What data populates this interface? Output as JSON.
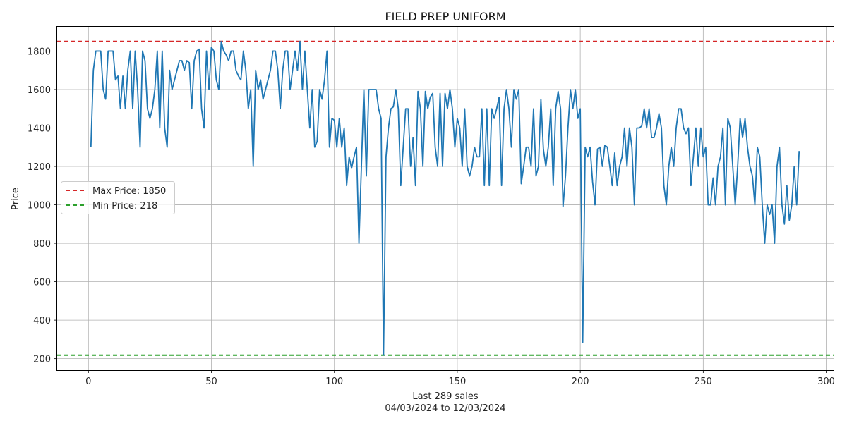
{
  "chart_data": {
    "type": "line",
    "title": "FIELD PREP UNIFORM",
    "xlabel": "Last 289 sales",
    "xlabel_sub": "04/03/2024 to 12/03/2024",
    "ylabel": "Price",
    "xlim": [
      -13,
      303
    ],
    "ylim": [
      140,
      1930
    ],
    "xticks": [
      0,
      50,
      100,
      150,
      200,
      250,
      300
    ],
    "yticks": [
      200,
      400,
      600,
      800,
      1000,
      1200,
      1400,
      1600,
      1800
    ],
    "grid": true,
    "legend_position": "center-left",
    "series": [
      {
        "color": "#1f77b4",
        "x_start": 1,
        "values": [
          1300,
          1700,
          1800,
          1800,
          1800,
          1600,
          1550,
          1800,
          1800,
          1800,
          1650,
          1670,
          1500,
          1670,
          1500,
          1700,
          1800,
          1500,
          1800,
          1600,
          1300,
          1800,
          1750,
          1500,
          1450,
          1500,
          1600,
          1800,
          1400,
          1800,
          1400,
          1300,
          1700,
          1600,
          1650,
          1700,
          1750,
          1750,
          1700,
          1750,
          1740,
          1500,
          1750,
          1800,
          1810,
          1500,
          1400,
          1800,
          1600,
          1820,
          1800,
          1650,
          1600,
          1850,
          1800,
          1780,
          1750,
          1800,
          1800,
          1700,
          1670,
          1650,
          1800,
          1700,
          1500,
          1600,
          1200,
          1700,
          1600,
          1650,
          1550,
          1600,
          1650,
          1700,
          1800,
          1800,
          1700,
          1500,
          1700,
          1800,
          1800,
          1600,
          1700,
          1800,
          1700,
          1850,
          1600,
          1800,
          1600,
          1400,
          1600,
          1300,
          1330,
          1600,
          1550,
          1650,
          1800,
          1300,
          1450,
          1440,
          1300,
          1450,
          1300,
          1400,
          1100,
          1250,
          1190,
          1250,
          1300,
          800,
          1200,
          1600,
          1150,
          1600,
          1600,
          1600,
          1600,
          1500,
          1450,
          218,
          1250,
          1400,
          1500,
          1510,
          1600,
          1500,
          1100,
          1300,
          1500,
          1500,
          1200,
          1350,
          1100,
          1590,
          1500,
          1200,
          1590,
          1500,
          1560,
          1580,
          1300,
          1200,
          1580,
          1200,
          1580,
          1500,
          1600,
          1500,
          1300,
          1450,
          1400,
          1200,
          1500,
          1200,
          1150,
          1200,
          1300,
          1250,
          1250,
          1500,
          1100,
          1500,
          1100,
          1500,
          1450,
          1500,
          1560,
          1100,
          1500,
          1600,
          1500,
          1300,
          1600,
          1550,
          1600,
          1110,
          1200,
          1300,
          1300,
          1200,
          1500,
          1150,
          1200,
          1550,
          1290,
          1200,
          1300,
          1500,
          1100,
          1500,
          1590,
          1500,
          990,
          1150,
          1400,
          1600,
          1500,
          1600,
          1450,
          1500,
          285,
          1300,
          1250,
          1300,
          1120,
          1000,
          1290,
          1300,
          1200,
          1310,
          1300,
          1200,
          1100,
          1270,
          1100,
          1200,
          1250,
          1400,
          1200,
          1400,
          1300,
          1000,
          1400,
          1400,
          1410,
          1500,
          1400,
          1500,
          1350,
          1350,
          1400,
          1475,
          1400,
          1100,
          1000,
          1200,
          1300,
          1200,
          1400,
          1500,
          1500,
          1400,
          1370,
          1400,
          1100,
          1250,
          1400,
          1200,
          1400,
          1250,
          1300,
          1000,
          1000,
          1140,
          1000,
          1200,
          1250,
          1400,
          1000,
          1450,
          1400,
          1200,
          1000,
          1200,
          1450,
          1350,
          1450,
          1300,
          1200,
          1150,
          1000,
          1300,
          1250,
          1000,
          800,
          1000,
          950,
          1000,
          800,
          1200,
          1300,
          1000,
          900,
          1100,
          920,
          1000,
          1200,
          1000,
          1280
        ]
      }
    ],
    "reference_lines": [
      {
        "label": "Max Price: 1850",
        "value": 1850,
        "color": "#d62728"
      },
      {
        "label": "Min Price: 218",
        "value": 218,
        "color": "#2ca02c"
      }
    ]
  }
}
